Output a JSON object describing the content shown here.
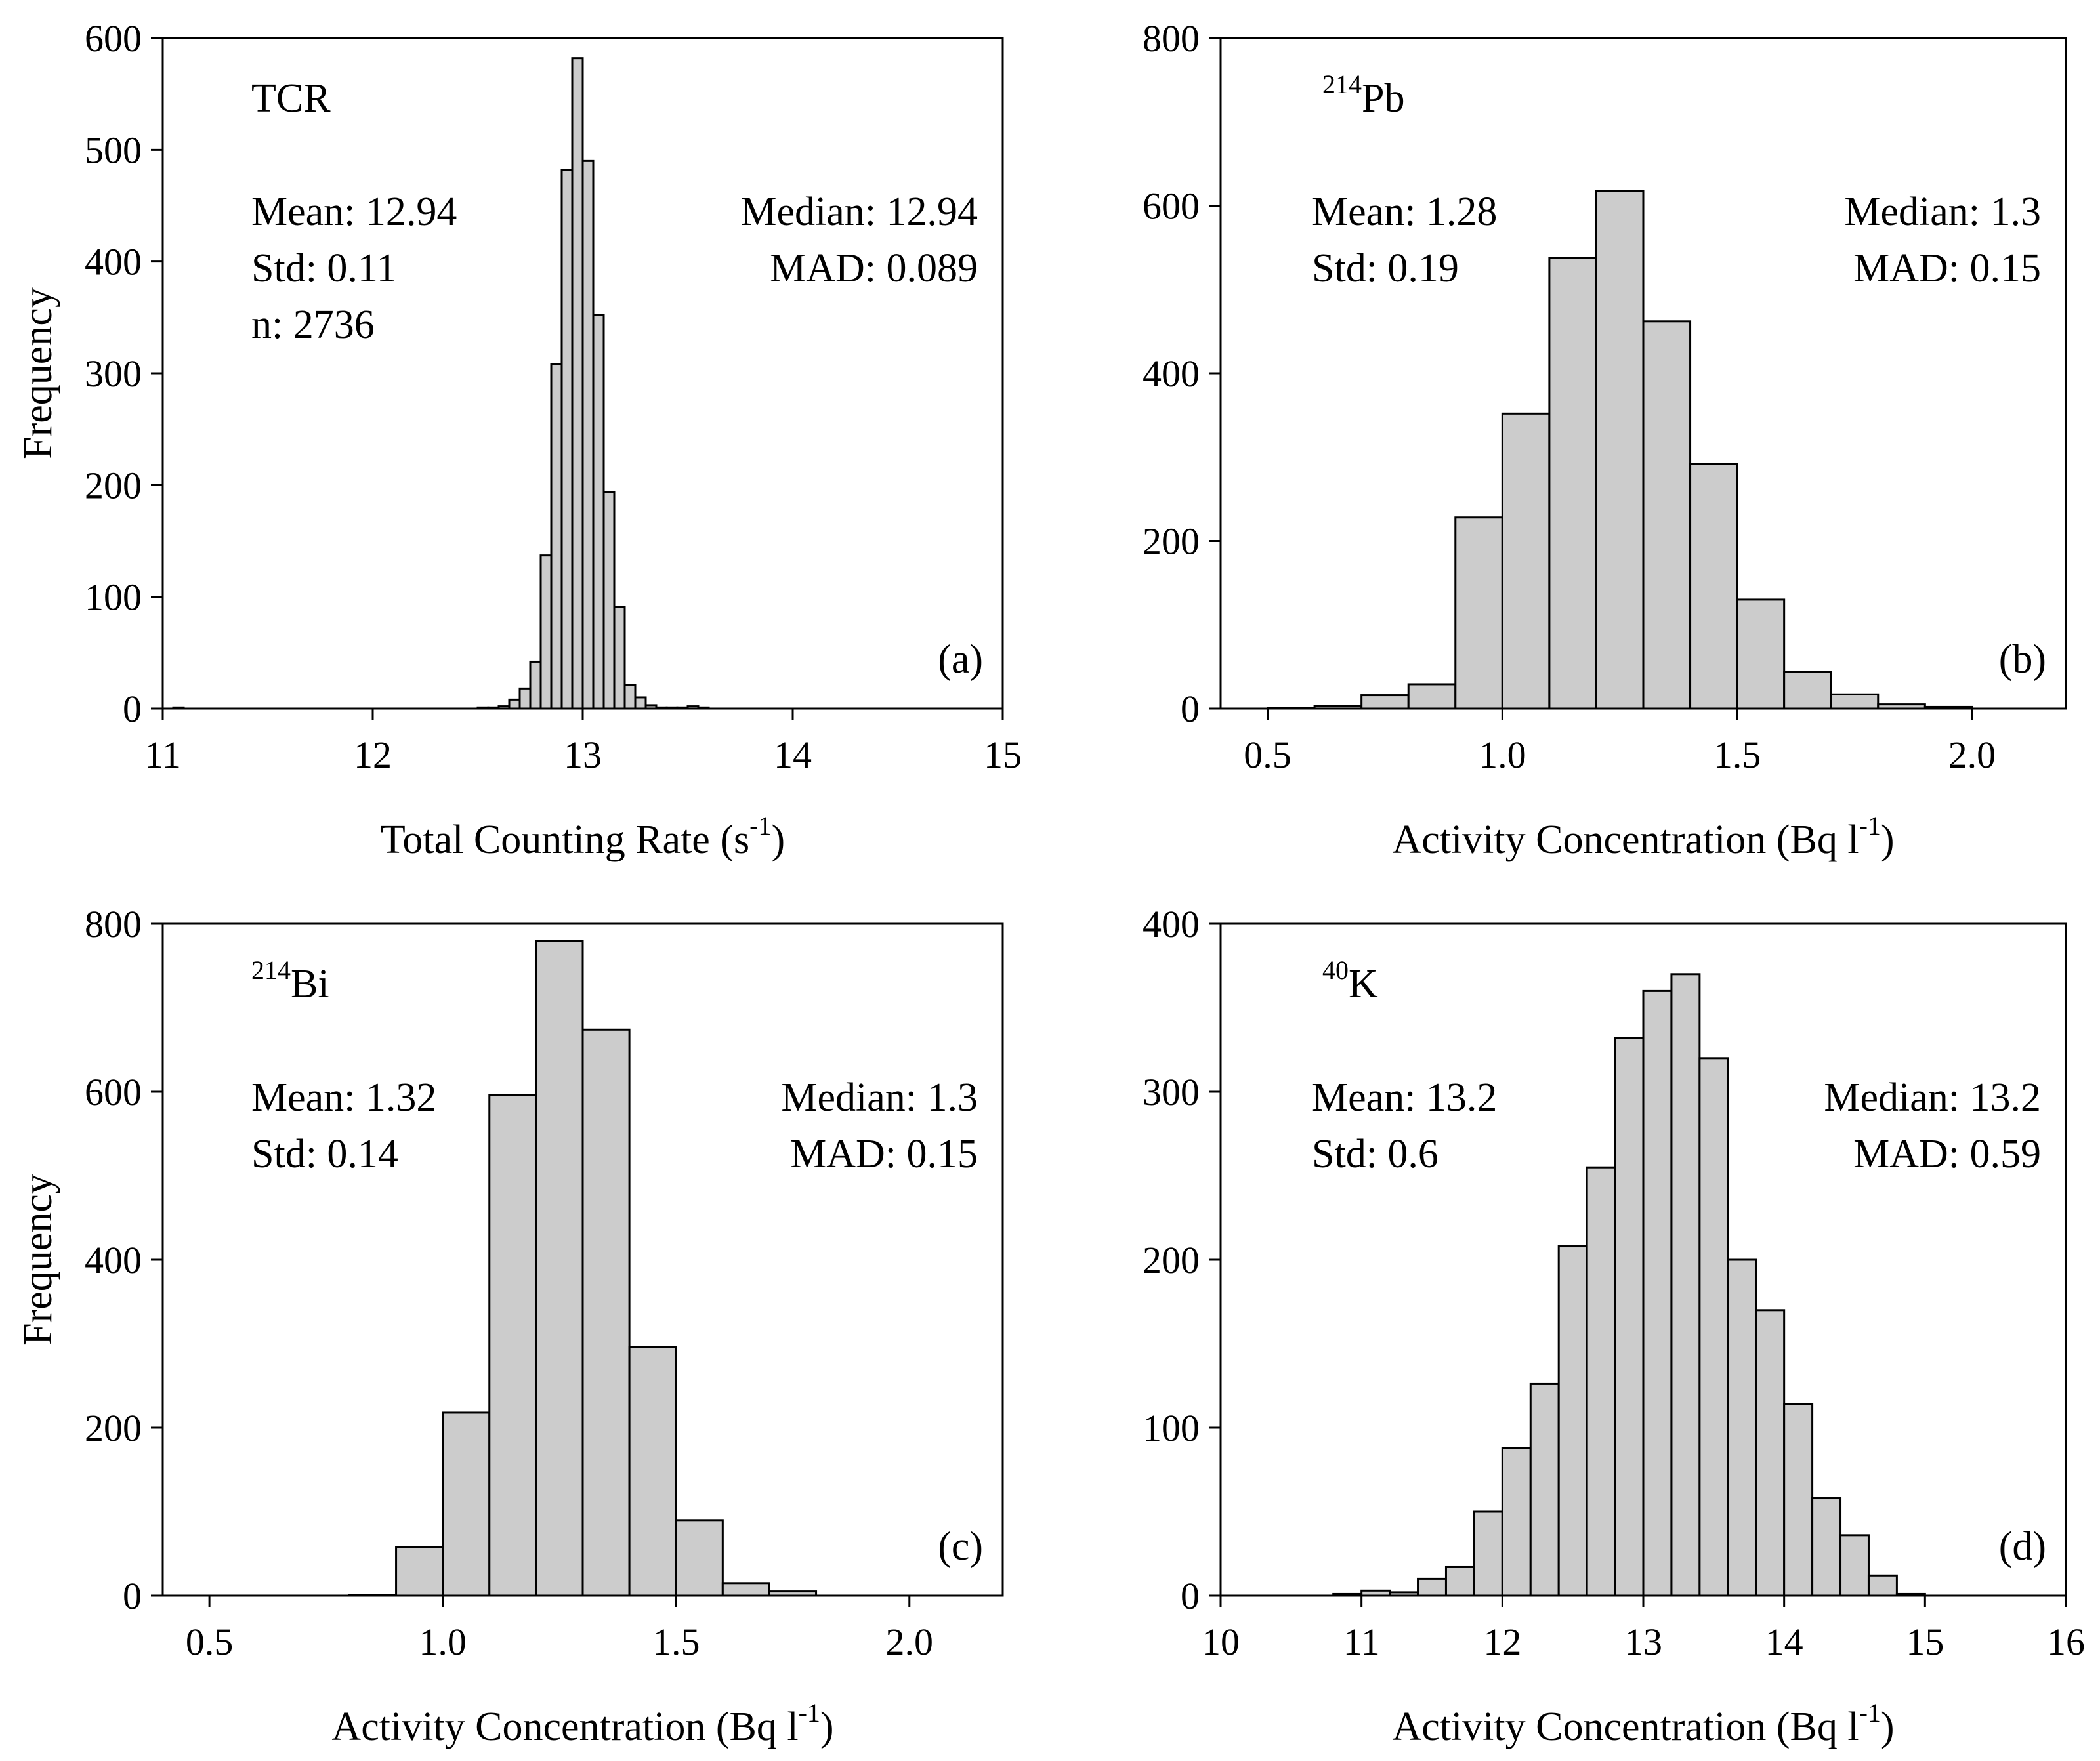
{
  "chart_data": [
    {
      "type": "bar",
      "panel": "(a)",
      "label": "TCR",
      "xlabel": "Total Counting Rate (s",
      "xlabel_sup": "-1",
      "xlabel_end": ")",
      "ylabel": "Frequency",
      "xlim": [
        11,
        15
      ],
      "ylim": [
        0,
        600
      ],
      "xticks": [
        "11",
        "12",
        "13",
        "14",
        "15"
      ],
      "yticks": [
        "0",
        "100",
        "200",
        "300",
        "400",
        "500",
        "600"
      ],
      "stats_left": [
        "Mean: 12.94",
        "Std: 0.11",
        "n: 2736"
      ],
      "stats_right": [
        "Median: 12.94",
        "MAD: 0.089"
      ],
      "bin_width": 0.05,
      "bins": [
        {
          "x": 11.0,
          "y": 0
        },
        {
          "x": 11.05,
          "y": 1
        },
        {
          "x": 12.5,
          "y": 1
        },
        {
          "x": 12.55,
          "y": 1
        },
        {
          "x": 12.6,
          "y": 2
        },
        {
          "x": 12.65,
          "y": 8
        },
        {
          "x": 12.7,
          "y": 18
        },
        {
          "x": 12.75,
          "y": 42
        },
        {
          "x": 12.8,
          "y": 137
        },
        {
          "x": 12.85,
          "y": 308
        },
        {
          "x": 12.9,
          "y": 482
        },
        {
          "x": 12.95,
          "y": 582
        },
        {
          "x": 13.0,
          "y": 490
        },
        {
          "x": 13.05,
          "y": 352
        },
        {
          "x": 13.1,
          "y": 194
        },
        {
          "x": 13.15,
          "y": 91
        },
        {
          "x": 13.2,
          "y": 21
        },
        {
          "x": 13.25,
          "y": 10
        },
        {
          "x": 13.3,
          "y": 3
        },
        {
          "x": 13.35,
          "y": 1
        },
        {
          "x": 13.4,
          "y": 1
        },
        {
          "x": 13.45,
          "y": 1
        },
        {
          "x": 13.5,
          "y": 2
        },
        {
          "x": 13.55,
          "y": 1
        }
      ]
    },
    {
      "type": "bar",
      "panel": "(b)",
      "label": "Pb",
      "label_sup": "214",
      "xlabel": "Activity Concentration (Bq l",
      "xlabel_sup": "-1",
      "xlabel_end": ")",
      "ylabel": "",
      "xlim": [
        0.4,
        2.2
      ],
      "ylim": [
        0,
        800
      ],
      "xticks": [
        "0.5",
        "1.0",
        "1.5",
        "2.0"
      ],
      "yticks": [
        "0",
        "200",
        "400",
        "600",
        "800"
      ],
      "stats_left": [
        "Mean: 1.28",
        "Std: 0.19"
      ],
      "stats_right": [
        "Median: 1.3",
        "MAD: 0.15"
      ],
      "bin_width": 0.1,
      "bins": [
        {
          "x": 0.5,
          "y": 1
        },
        {
          "x": 0.6,
          "y": 3
        },
        {
          "x": 0.7,
          "y": 16
        },
        {
          "x": 0.8,
          "y": 29
        },
        {
          "x": 0.9,
          "y": 228
        },
        {
          "x": 1.0,
          "y": 352
        },
        {
          "x": 1.1,
          "y": 538
        },
        {
          "x": 1.2,
          "y": 618
        },
        {
          "x": 1.3,
          "y": 462
        },
        {
          "x": 1.4,
          "y": 292
        },
        {
          "x": 1.5,
          "y": 130
        },
        {
          "x": 1.6,
          "y": 44
        },
        {
          "x": 1.7,
          "y": 17
        },
        {
          "x": 1.8,
          "y": 5
        },
        {
          "x": 1.9,
          "y": 2
        }
      ]
    },
    {
      "type": "bar",
      "panel": "(c)",
      "label": "Bi",
      "label_sup": "214",
      "xlabel": "Activity Concentration (Bq l",
      "xlabel_sup": "-1",
      "xlabel_end": ")",
      "ylabel": "Frequency",
      "xlim": [
        0.4,
        2.2
      ],
      "ylim": [
        0,
        800
      ],
      "xticks": [
        "0.5",
        "1.0",
        "1.5",
        "2.0"
      ],
      "yticks": [
        "0",
        "200",
        "400",
        "600",
        "800"
      ],
      "stats_left": [
        "Mean: 1.32",
        "Std: 0.14"
      ],
      "stats_right": [
        "Median: 1.3",
        "MAD: 0.15"
      ],
      "bin_width": 0.1,
      "bins": [
        {
          "x": 0.8,
          "y": 1
        },
        {
          "x": 0.9,
          "y": 58
        },
        {
          "x": 1.0,
          "y": 218
        },
        {
          "x": 1.1,
          "y": 596
        },
        {
          "x": 1.2,
          "y": 780
        },
        {
          "x": 1.3,
          "y": 674
        },
        {
          "x": 1.4,
          "y": 296
        },
        {
          "x": 1.5,
          "y": 90
        },
        {
          "x": 1.6,
          "y": 15
        },
        {
          "x": 1.7,
          "y": 5
        }
      ]
    },
    {
      "type": "bar",
      "panel": "(d)",
      "label": "K",
      "label_sup": "40",
      "xlabel": "Activity Concentration (Bq l",
      "xlabel_sup": "-1",
      "xlabel_end": ")",
      "ylabel": "",
      "xlim": [
        10,
        16
      ],
      "ylim": [
        0,
        400
      ],
      "xticks": [
        "10",
        "11",
        "12",
        "13",
        "14",
        "15",
        "16"
      ],
      "yticks": [
        "0",
        "100",
        "200",
        "300",
        "400"
      ],
      "stats_left": [
        "Mean: 13.2",
        "Std: 0.6"
      ],
      "stats_right": [
        "Median: 13.2",
        "MAD: 0.59"
      ],
      "bin_width": 0.2,
      "bins": [
        {
          "x": 10.8,
          "y": 1
        },
        {
          "x": 11.0,
          "y": 3
        },
        {
          "x": 11.2,
          "y": 2
        },
        {
          "x": 11.4,
          "y": 10
        },
        {
          "x": 11.6,
          "y": 17
        },
        {
          "x": 11.8,
          "y": 50
        },
        {
          "x": 12.0,
          "y": 88
        },
        {
          "x": 12.2,
          "y": 126
        },
        {
          "x": 12.4,
          "y": 208
        },
        {
          "x": 12.6,
          "y": 255
        },
        {
          "x": 12.8,
          "y": 332
        },
        {
          "x": 13.0,
          "y": 360
        },
        {
          "x": 13.2,
          "y": 370
        },
        {
          "x": 13.4,
          "y": 320
        },
        {
          "x": 13.6,
          "y": 200
        },
        {
          "x": 13.8,
          "y": 170
        },
        {
          "x": 14.0,
          "y": 114
        },
        {
          "x": 14.2,
          "y": 58
        },
        {
          "x": 14.4,
          "y": 36
        },
        {
          "x": 14.6,
          "y": 12
        },
        {
          "x": 14.8,
          "y": 1
        }
      ]
    }
  ]
}
